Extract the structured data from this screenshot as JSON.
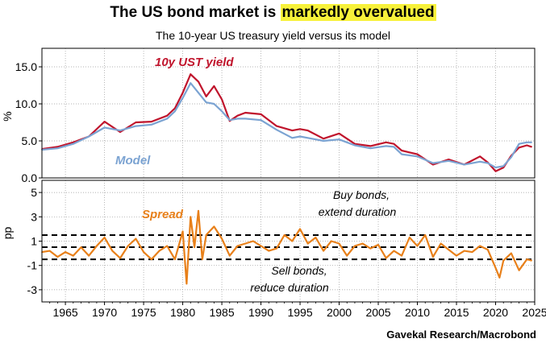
{
  "header": {
    "title_prefix": "The US bond market is ",
    "title_highlight": "markedly overvalued",
    "subtitle": "The 10-year US treasury yield versus its model"
  },
  "source": "Gavekal Research/Macrobond",
  "colors": {
    "yield": "#c0142c",
    "model": "#7ba3d2",
    "spread": "#e8801a",
    "highlight": "#f7f13a"
  },
  "chart_data": [
    {
      "type": "line",
      "ylabel": "%",
      "xlim": [
        1962,
        2025
      ],
      "ylim": [
        0,
        17.5
      ],
      "yticks": [
        0.0,
        5.0,
        10.0,
        15.0
      ],
      "ytick_labels": [
        "0.0",
        "5.0",
        "10.0",
        "15.0"
      ],
      "grid": true,
      "x": [
        1962,
        1964,
        1966,
        1968,
        1970,
        1972,
        1974,
        1976,
        1978,
        1979,
        1980,
        1981,
        1982,
        1983,
        1984,
        1985,
        1986,
        1987,
        1988,
        1990,
        1992,
        1994,
        1995,
        1996,
        1998,
        2000,
        2002,
        2004,
        2006,
        2007,
        2008,
        2010,
        2012,
        2014,
        2016,
        2018,
        2019,
        2020,
        2021,
        2022,
        2023,
        2024,
        2024.6
      ],
      "series": [
        {
          "name": "10y UST yield",
          "values": [
            3.9,
            4.2,
            4.8,
            5.6,
            7.6,
            6.2,
            7.5,
            7.6,
            8.4,
            9.4,
            11.5,
            14.0,
            13.0,
            11.0,
            12.4,
            10.6,
            7.7,
            8.4,
            8.8,
            8.6,
            7.0,
            6.4,
            6.6,
            6.4,
            5.3,
            6.0,
            4.6,
            4.3,
            4.8,
            4.6,
            3.7,
            3.2,
            1.8,
            2.5,
            1.8,
            2.9,
            2.1,
            0.9,
            1.4,
            3.0,
            4.1,
            4.4,
            4.2
          ]
        },
        {
          "name": "Model",
          "values": [
            3.8,
            4.0,
            4.6,
            5.6,
            6.8,
            6.4,
            7.0,
            7.2,
            8.0,
            9.0,
            10.8,
            12.8,
            11.5,
            10.2,
            10.0,
            9.0,
            7.8,
            8.0,
            8.0,
            7.8,
            6.5,
            5.4,
            5.6,
            5.4,
            5.0,
            5.2,
            4.4,
            4.0,
            4.3,
            4.2,
            3.2,
            2.9,
            2.0,
            2.3,
            1.8,
            2.2,
            2.0,
            1.4,
            1.6,
            2.8,
            4.6,
            4.8,
            4.8
          ]
        }
      ]
    },
    {
      "type": "line",
      "ylabel": "pp",
      "xlim": [
        1962,
        2025
      ],
      "ylim": [
        -4,
        6
      ],
      "yticks": [
        -3,
        -1,
        1,
        3,
        5
      ],
      "ytick_labels": [
        "-3",
        "-1",
        "1",
        "3",
        "5"
      ],
      "xticks": [
        1965,
        1970,
        1975,
        1980,
        1985,
        1990,
        1995,
        2000,
        2005,
        2010,
        2015,
        2020,
        2025
      ],
      "xtick_labels": [
        "1965",
        "1970",
        "1975",
        "1980",
        "1985",
        "1990",
        "1995",
        "2000",
        "2005",
        "2010",
        "2015",
        "2020",
        "2025"
      ],
      "grid": true,
      "reference_lines": [
        1.5,
        0.5,
        -0.5
      ],
      "annotations": {
        "upper": [
          "Buy bonds,",
          "extend duration"
        ],
        "lower": [
          "Sell bonds,",
          "reduce duration"
        ]
      },
      "x": [
        1962,
        1963,
        1964,
        1965,
        1966,
        1967,
        1968,
        1969,
        1970,
        1971,
        1972,
        1973,
        1974,
        1975,
        1976,
        1977,
        1978,
        1979,
        1980,
        1980.5,
        1981,
        1981.5,
        1982,
        1982.5,
        1983,
        1984,
        1985,
        1986,
        1987,
        1988,
        1989,
        1990,
        1991,
        1992,
        1993,
        1994,
        1995,
        1996,
        1997,
        1998,
        1999,
        2000,
        2001,
        2002,
        2003,
        2004,
        2005,
        2006,
        2007,
        2008,
        2009,
        2010,
        2011,
        2012,
        2013,
        2014,
        2015,
        2016,
        2017,
        2018,
        2019,
        2020,
        2020.5,
        2021,
        2022,
        2023,
        2024,
        2024.6
      ],
      "series": [
        {
          "name": "Spread",
          "values": [
            0.1,
            0.2,
            -0.3,
            0.1,
            -0.2,
            0.5,
            -0.2,
            0.6,
            1.3,
            0.2,
            -0.4,
            0.6,
            1.2,
            0.1,
            -0.5,
            0.2,
            0.6,
            -0.5,
            1.8,
            -2.5,
            3.0,
            0.5,
            3.5,
            -0.5,
            1.5,
            2.2,
            1.2,
            -0.2,
            0.6,
            0.8,
            1.0,
            0.6,
            0.2,
            0.4,
            1.5,
            1.0,
            2.0,
            0.8,
            1.3,
            0.2,
            1.0,
            0.8,
            -0.2,
            0.6,
            0.8,
            0.4,
            0.7,
            -0.4,
            0.2,
            -0.2,
            1.3,
            0.6,
            1.5,
            -0.3,
            0.8,
            0.3,
            -0.2,
            0.2,
            0.1,
            0.6,
            0.3,
            -1.2,
            -2.0,
            -0.6,
            0.0,
            -1.4,
            -0.5,
            -0.6
          ]
        }
      ]
    }
  ]
}
